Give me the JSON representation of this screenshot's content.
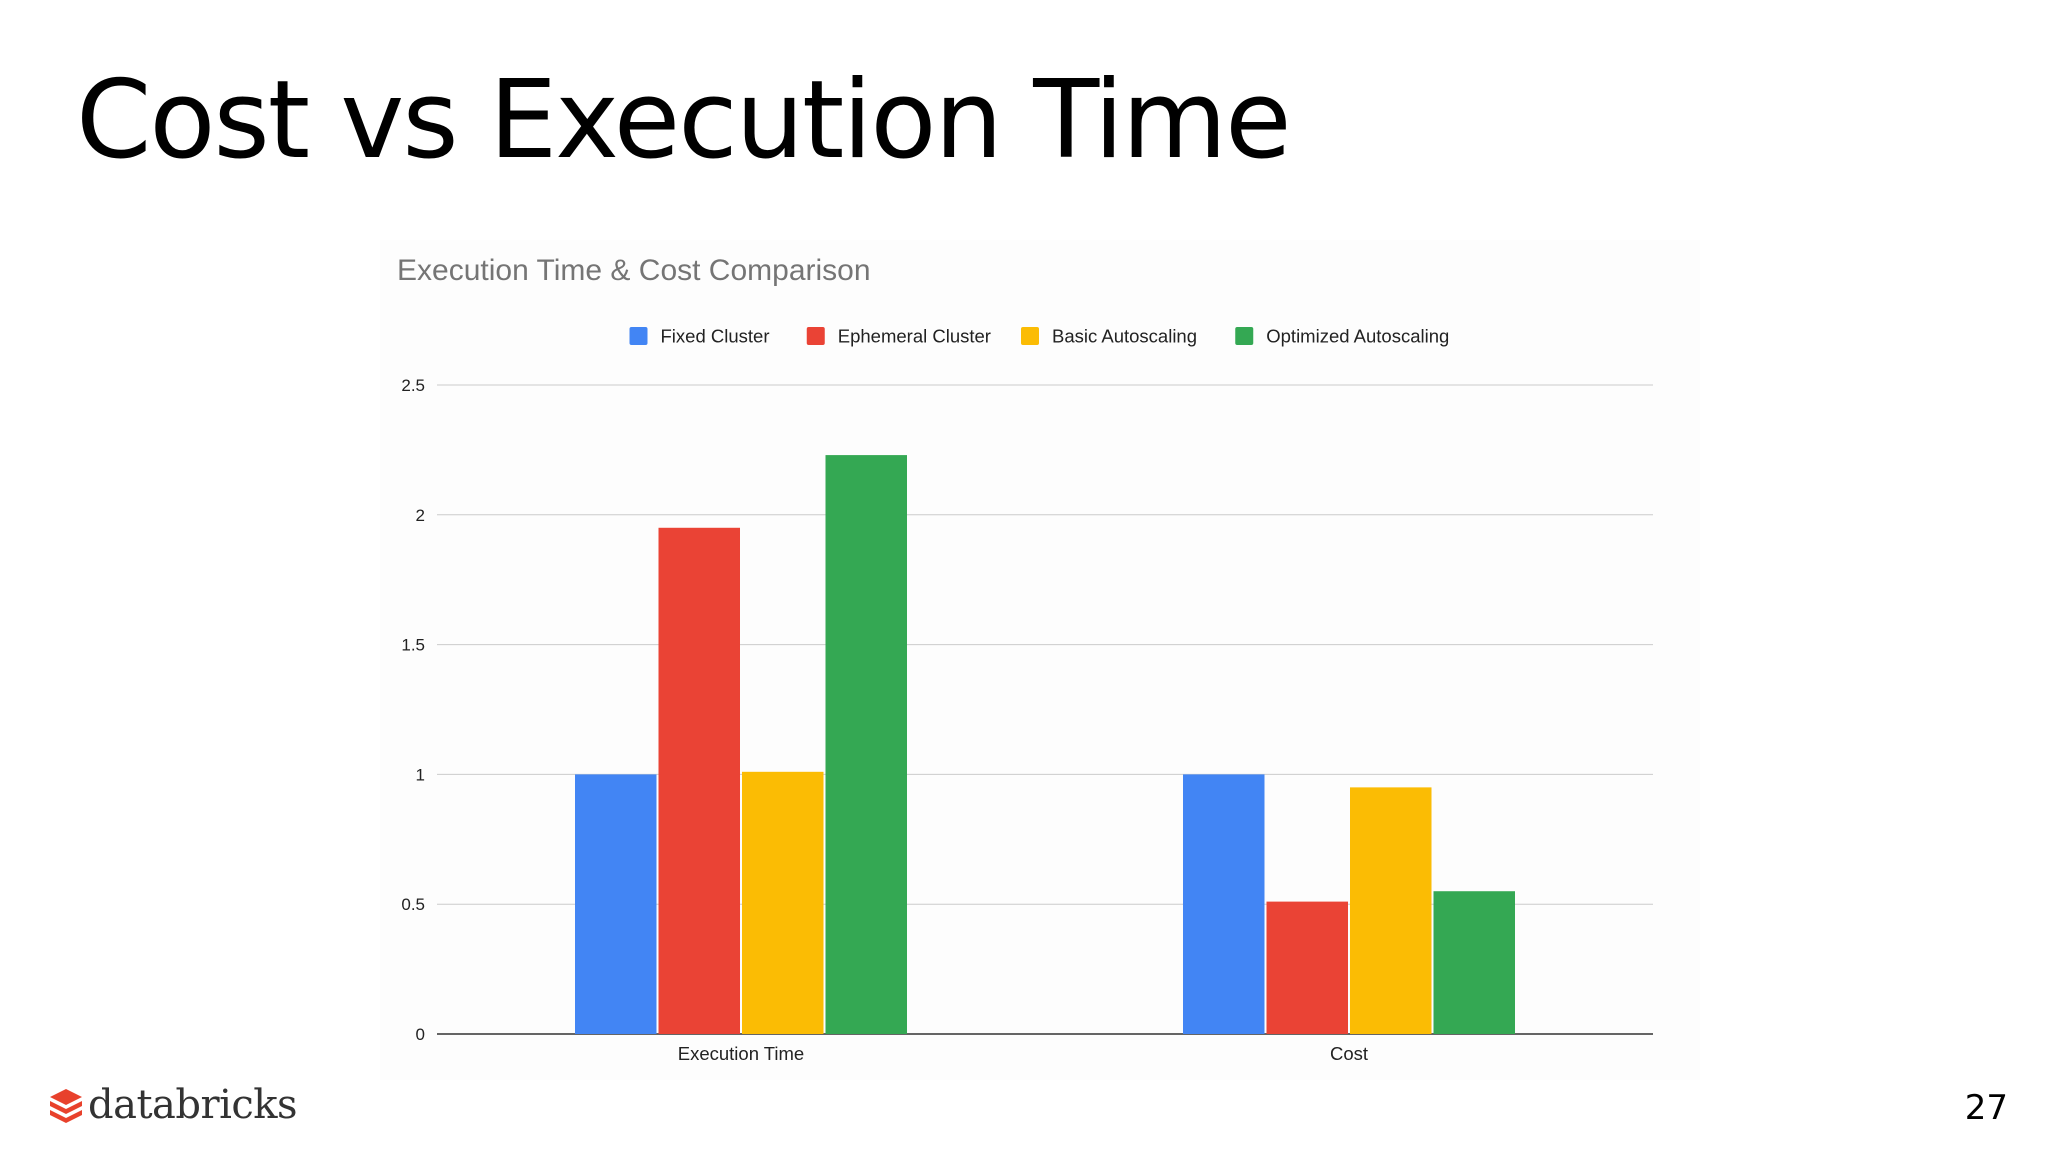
{
  "slide": {
    "title": "Cost vs Execution Time",
    "page_number": "27"
  },
  "logo": {
    "text": "databricks",
    "brand_color": "#e8412c"
  },
  "chart_data": {
    "type": "bar",
    "title": "Execution Time & Cost Comparison",
    "xlabel": "",
    "ylabel": "",
    "categories": [
      "Execution Time",
      "Cost"
    ],
    "series": [
      {
        "name": "Fixed Cluster",
        "color": "#4285f4",
        "values": [
          1.0,
          1.0
        ]
      },
      {
        "name": "Ephemeral Cluster",
        "color": "#ea4335",
        "values": [
          1.95,
          0.51
        ]
      },
      {
        "name": "Basic Autoscaling",
        "color": "#fbbc04",
        "values": [
          1.01,
          0.95
        ]
      },
      {
        "name": "Optimized Autoscaling",
        "color": "#34a853",
        "values": [
          2.23,
          0.55
        ]
      }
    ],
    "ylim": [
      0,
      2.5
    ],
    "yticks": [
      "0",
      "0.5",
      "1",
      "1.5",
      "2",
      "2.5"
    ],
    "grid": true,
    "legend_position": "top"
  }
}
